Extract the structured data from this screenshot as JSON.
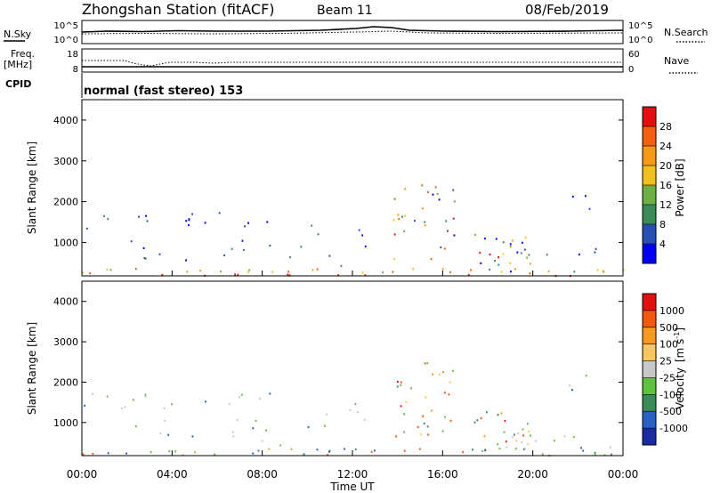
{
  "header": {
    "station": "Zhongshan Station (fitACF)",
    "beam": "Beam 11",
    "date": "08/Feb/2019"
  },
  "noise_panel": {
    "left_label": "N.Sky",
    "right_label": "N.Search",
    "left_ticks": [
      "10^5",
      "10^0"
    ],
    "right_ticks": [
      "10^5",
      "10^0"
    ]
  },
  "freq_panel": {
    "left_label_1": "Freq.",
    "left_label_2": "[MHz]",
    "right_label": "Nave",
    "left_ticks": [
      "18",
      "8"
    ],
    "right_ticks": [
      "60",
      "0"
    ]
  },
  "cpid": {
    "label": "CPID",
    "text": "normal (fast stereo) 153"
  },
  "colors": {
    "power": [
      "#0000ee",
      "#2a4fb3",
      "#3a8a5a",
      "#6fae45",
      "#f0c020",
      "#f39a1a",
      "#f06010",
      "#e01010"
    ],
    "velocity": [
      "#e01010",
      "#f05a10",
      "#f59a20",
      "#f8c860",
      "#c8c8c8",
      "#60c040",
      "#3a8a5a",
      "#2a60c0",
      "#1a2aa0"
    ]
  },
  "chart_data": [
    {
      "type": "heatmap",
      "title": "",
      "xlabel": "",
      "ylabel": "Slant Range [km]",
      "xlim": [
        "00:00",
        "00:00"
      ],
      "ylim": [
        180,
        4500
      ],
      "yticks": [
        "1000",
        "2000",
        "3000",
        "4000"
      ],
      "colorbar": {
        "label": "Power [dB]",
        "ticks": [
          "4",
          "8",
          "12",
          "16",
          "20",
          "24",
          "28"
        ],
        "range": [
          0,
          30
        ]
      }
    },
    {
      "type": "heatmap",
      "title": "",
      "xlabel": "Time UT",
      "ylabel": "Slant Range [km]",
      "xticks": [
        "00:00",
        "04:00",
        "08:00",
        "12:00",
        "16:00",
        "20:00",
        "00:00"
      ],
      "ylim": [
        180,
        4500
      ],
      "yticks": [
        "1000",
        "2000",
        "3000",
        "4000"
      ],
      "colorbar": {
        "label_main": "Velocity",
        "label_unit": "[m s",
        "label_exp": "-1",
        "label_close": "]",
        "ticks": [
          "1000",
          "500",
          "100",
          "25",
          "-25",
          "-100",
          "-500",
          "-1000"
        ]
      }
    }
  ]
}
